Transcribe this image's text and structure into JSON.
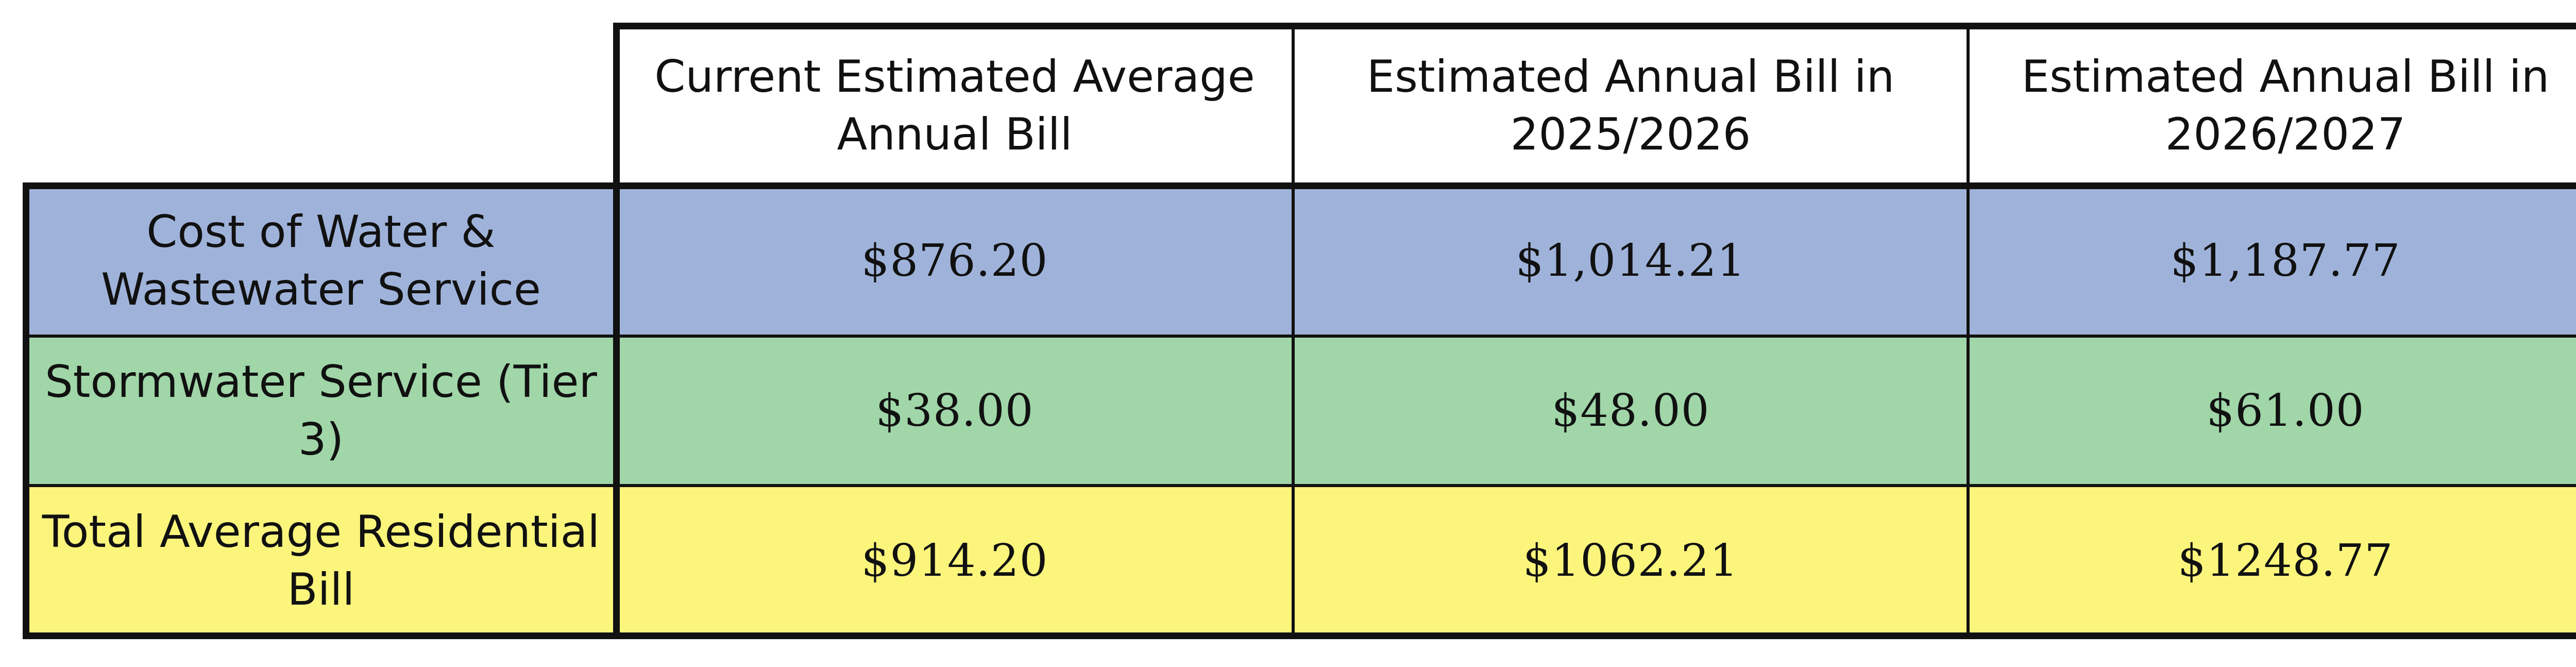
{
  "colors": {
    "row_blue": "#9fb3da",
    "row_green": "#a0d6a8",
    "row_yellow": "#fbf57c",
    "header_bg": "#ffffff",
    "border": "#111111"
  },
  "table": {
    "headers": [
      "Current Estimated Average Annual Bill",
      "Estimated Annual Bill in 2025/2026",
      "Estimated Annual Bill in 2026/2027"
    ],
    "rows": [
      {
        "label": "Cost of Water & Wastewater Service",
        "values": [
          "$876.20",
          "$1,014.21",
          "$1,187.77"
        ]
      },
      {
        "label": "Stormwater Service (Tier 3)",
        "values": [
          "$38.00",
          "$48.00",
          "$61.00"
        ]
      },
      {
        "label": "Total Average Residential Bill",
        "values": [
          "$914.20",
          "$1062.21",
          "$1248.77"
        ]
      }
    ]
  }
}
